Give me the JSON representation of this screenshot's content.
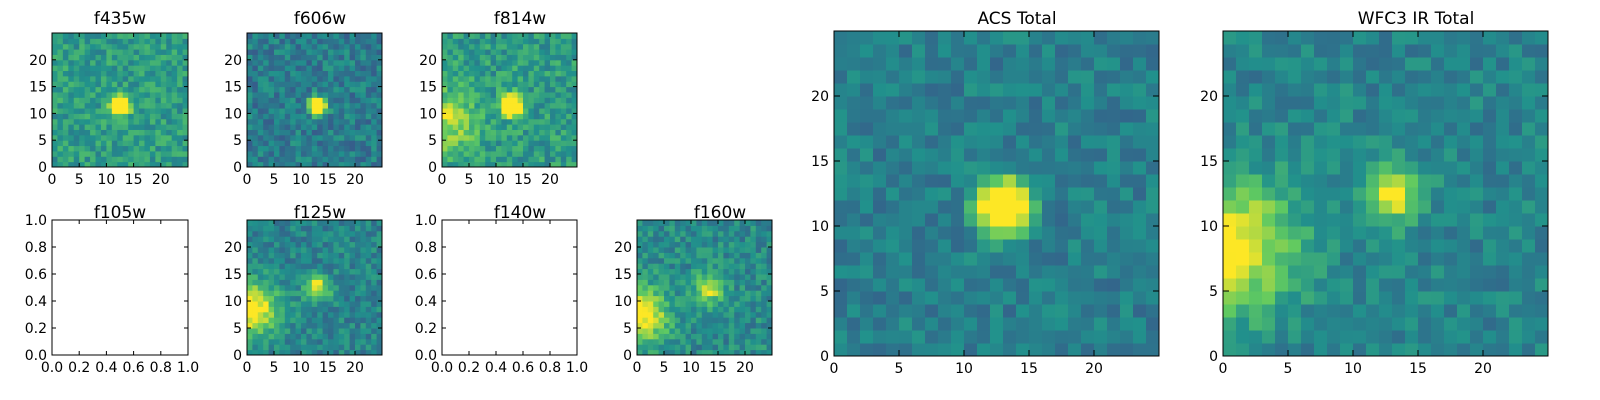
{
  "colormap": [
    "#440154",
    "#3b528b",
    "#21918c",
    "#5ec962",
    "#fde725"
  ],
  "chart_data": [
    {
      "title": "f435w",
      "type": "heatmap",
      "empty": false,
      "grid": "25x25",
      "x_ticks": [
        "0",
        "5",
        "10",
        "15",
        "20"
      ],
      "y_ticks": [
        "0",
        "5",
        "10",
        "15",
        "20"
      ],
      "xlim": [
        0,
        25
      ],
      "ylim": [
        0,
        25
      ],
      "source": {
        "bg": 0.55,
        "noise": 0.13,
        "peaks": [
          [
            12,
            11,
            1.1,
            1.4
          ]
        ]
      }
    },
    {
      "title": "f606w",
      "type": "heatmap",
      "empty": false,
      "grid": "25x25",
      "x_ticks": [
        "0",
        "5",
        "10",
        "15",
        "20"
      ],
      "y_ticks": [
        "0",
        "5",
        "10",
        "15",
        "20"
      ],
      "xlim": [
        0,
        25
      ],
      "ylim": [
        0,
        25
      ],
      "source": {
        "bg": 0.42,
        "noise": 0.13,
        "peaks": [
          [
            12.5,
            11,
            1.0,
            1.4
          ]
        ]
      }
    },
    {
      "title": "f814w",
      "type": "heatmap",
      "empty": false,
      "grid": "25x25",
      "x_ticks": [
        "0",
        "5",
        "10",
        "15",
        "20"
      ],
      "y_ticks": [
        "0",
        "5",
        "10",
        "15",
        "20"
      ],
      "xlim": [
        0,
        25
      ],
      "ylim": [
        0,
        25
      ],
      "source": {
        "bg": 0.55,
        "noise": 0.14,
        "peaks": [
          [
            12.5,
            11,
            1.2,
            1.4
          ],
          [
            0,
            8,
            4,
            0.35
          ]
        ]
      }
    },
    {
      "title": "f105w",
      "type": "empty",
      "empty": true,
      "x_ticks": [
        "0.0",
        "0.2",
        "0.4",
        "0.6",
        "0.8",
        "1.0"
      ],
      "y_ticks": [
        "0.0",
        "0.2",
        "0.4",
        "0.6",
        "0.8",
        "1.0"
      ],
      "xlim": [
        0,
        1
      ],
      "ylim": [
        0,
        1
      ]
    },
    {
      "title": "f125w",
      "type": "heatmap",
      "empty": false,
      "grid": "25x25",
      "x_ticks": [
        "0",
        "5",
        "10",
        "15",
        "20"
      ],
      "y_ticks": [
        "0",
        "5",
        "10",
        "15",
        "20"
      ],
      "xlim": [
        0,
        25
      ],
      "ylim": [
        0,
        25
      ],
      "source": {
        "bg": 0.45,
        "noise": 0.12,
        "peaks": [
          [
            12.5,
            12,
            1.6,
            0.55
          ],
          [
            0,
            8,
            3.5,
            0.65
          ]
        ]
      }
    },
    {
      "title": "f140w",
      "type": "empty",
      "empty": true,
      "x_ticks": [
        "0.0",
        "0.2",
        "0.4",
        "0.6",
        "0.8",
        "1.0"
      ],
      "y_ticks": [
        "0.0",
        "0.2",
        "0.4",
        "0.6",
        "0.8",
        "1.0"
      ],
      "xlim": [
        0,
        1
      ],
      "ylim": [
        0,
        1
      ]
    },
    {
      "title": "f160w",
      "type": "heatmap",
      "empty": false,
      "grid": "25x25",
      "x_ticks": [
        "0",
        "5",
        "10",
        "15",
        "20"
      ],
      "y_ticks": [
        "0",
        "5",
        "10",
        "15",
        "20"
      ],
      "xlim": [
        0,
        25
      ],
      "ylim": [
        0,
        25
      ],
      "source": {
        "bg": 0.48,
        "noise": 0.13,
        "peaks": [
          [
            13,
            12,
            1.8,
            0.5
          ],
          [
            0,
            7,
            3.5,
            0.6
          ]
        ]
      }
    },
    {
      "title": "ACS Total",
      "type": "heatmap",
      "empty": false,
      "grid": "25x25",
      "x_ticks": [
        "0",
        "5",
        "10",
        "15",
        "20"
      ],
      "y_ticks": [
        "0",
        "5",
        "10",
        "15",
        "20"
      ],
      "xlim": [
        0,
        25
      ],
      "ylim": [
        0,
        25
      ],
      "source": {
        "bg": 0.43,
        "noise": 0.1,
        "peaks": [
          [
            12.5,
            11,
            1.3,
            1.3
          ]
        ]
      }
    },
    {
      "title": "WFC3 IR Total",
      "type": "heatmap",
      "empty": false,
      "grid": "25x25",
      "x_ticks": [
        "0",
        "5",
        "10",
        "15",
        "20"
      ],
      "y_ticks": [
        "0",
        "5",
        "10",
        "15",
        "20"
      ],
      "xlim": [
        0,
        25
      ],
      "ylim": [
        0,
        25
      ],
      "source": {
        "bg": 0.45,
        "noise": 0.1,
        "peaks": [
          [
            12.5,
            12,
            1.6,
            0.55
          ],
          [
            0,
            8,
            3.5,
            0.6
          ]
        ]
      }
    }
  ]
}
